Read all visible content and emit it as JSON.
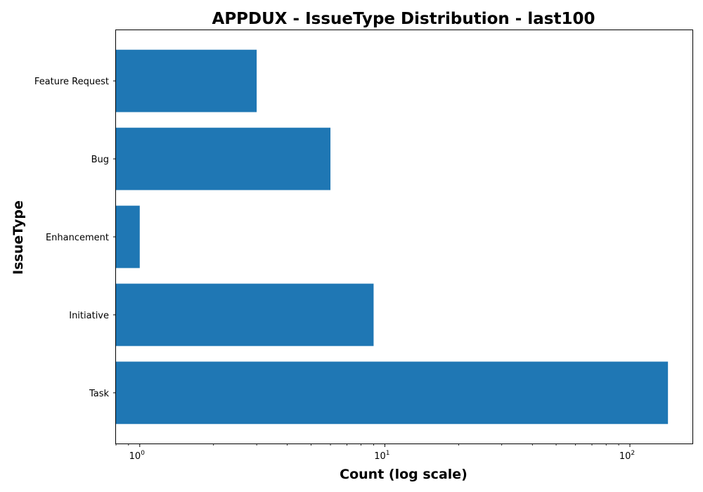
{
  "chart_data": {
    "type": "bar",
    "orientation": "horizontal",
    "title": "APPDUX - IssueType Distribution - last100",
    "xlabel": "Count (log scale)",
    "ylabel": "IssueType",
    "x_scale": "log",
    "xlim": [
      0.8,
      180
    ],
    "x_ticks": [
      {
        "value": 1,
        "base": "10",
        "exp": "0"
      },
      {
        "value": 10,
        "base": "10",
        "exp": "1"
      },
      {
        "value": 100,
        "base": "10",
        "exp": "2"
      }
    ],
    "categories": [
      "Feature Request",
      "Bug",
      "Enhancement",
      "Initiative",
      "Task"
    ],
    "values": [
      3,
      6,
      1,
      9,
      143
    ],
    "bar_color": "#1f77b4",
    "grid": false,
    "legend": "none"
  }
}
